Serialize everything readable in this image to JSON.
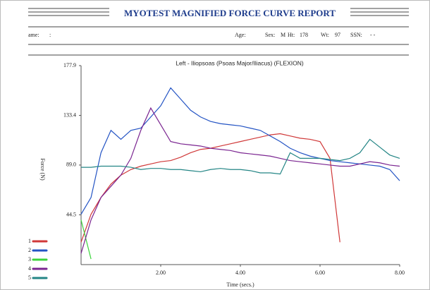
{
  "header": {
    "title": "MYOTEST MAGNIFIED FORCE CURVE REPORT",
    "fields": [
      "ame:",
      ":",
      "Age:",
      "Sex:",
      "M",
      "Ht:",
      "178",
      "Wt:",
      "97",
      "SSN:",
      "- -"
    ]
  },
  "chart_data": {
    "type": "line",
    "title": "Left - Iliopsoas (Psoas Major/Iliacus) (FLEXION)",
    "x_label": "Time (secs.)",
    "y_label": "Force (N)",
    "x": [
      0,
      0.25,
      0.5,
      0.75,
      1,
      1.25,
      1.5,
      1.75,
      2,
      2.25,
      2.5,
      2.75,
      3,
      3.25,
      3.5,
      3.75,
      4,
      4.25,
      4.5,
      4.75,
      5,
      5.25,
      5.5,
      5.75,
      6,
      6.25,
      6.5,
      6.75,
      7,
      7.25,
      7.5,
      7.75,
      8
    ],
    "xlim": [
      0,
      8
    ],
    "xticks": [
      {
        "value": 2,
        "label": "2.00"
      },
      {
        "value": 4,
        "label": "4.00"
      },
      {
        "value": 6,
        "label": "6.00"
      },
      {
        "value": 8,
        "label": "8.00"
      }
    ],
    "ylim": [
      0,
      177.9
    ],
    "yticks": [
      44.5,
      {
        "value": 89,
        "label": "89.0"
      },
      133.4,
      177.9
    ],
    "series": [
      {
        "name": "1",
        "color": "#d03838",
        "values": [
          20,
          45,
          60,
          72,
          80,
          85,
          88,
          90,
          92,
          93,
          96,
          100,
          103,
          104,
          106,
          108,
          110,
          112,
          114,
          116,
          117,
          115,
          113,
          112,
          110,
          95,
          20,
          null,
          null,
          null,
          null,
          null,
          null
        ]
      },
      {
        "name": "2",
        "color": "#2454c4",
        "values": [
          45,
          60,
          100,
          120,
          112,
          120,
          122,
          132,
          142,
          158,
          148,
          138,
          132,
          128,
          126,
          125,
          124,
          122,
          120,
          115,
          110,
          104,
          100,
          97,
          95,
          93,
          92,
          91,
          90,
          89,
          88,
          85,
          75
        ]
      },
      {
        "name": "3",
        "color": "#3cd43c",
        "values": [
          40,
          5,
          null,
          null,
          null,
          null,
          null,
          null,
          null,
          null,
          null,
          null,
          null,
          null,
          null,
          null,
          null,
          null,
          null,
          null,
          null,
          null,
          null,
          null,
          null,
          null,
          null,
          null,
          null,
          null,
          null,
          null,
          null
        ]
      },
      {
        "name": "4",
        "color": "#7a2490",
        "values": [
          10,
          40,
          60,
          70,
          80,
          95,
          120,
          140,
          125,
          110,
          108,
          107,
          106,
          104,
          103,
          102,
          100,
          99,
          98,
          97,
          95,
          93,
          92,
          91,
          90,
          89,
          88,
          88,
          90,
          92,
          91,
          89,
          88
        ]
      },
      {
        "name": "5",
        "color": "#238585",
        "values": [
          87,
          87,
          88,
          88,
          88,
          87,
          85,
          86,
          86,
          85,
          85,
          84,
          83,
          85,
          86,
          85,
          85,
          84,
          82,
          82,
          81,
          100,
          95,
          95,
          95,
          94,
          93,
          95,
          100,
          112,
          105,
          98,
          95
        ]
      }
    ]
  }
}
